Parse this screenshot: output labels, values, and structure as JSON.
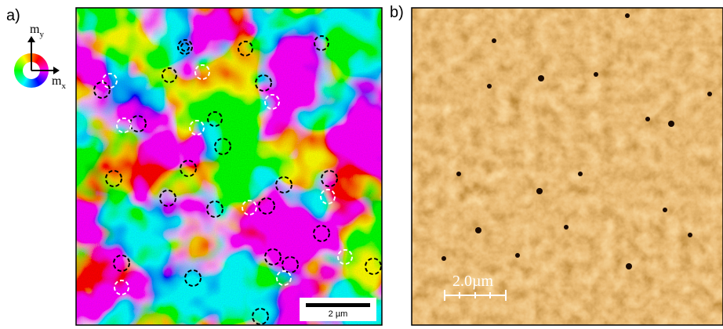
{
  "panels": [
    {
      "label": "a)",
      "scale_bar": "2 µm",
      "color_wheel": {
        "y_axis": "m",
        "y_sub": "y",
        "x_axis": "m",
        "x_sub": "x"
      }
    },
    {
      "label": "b)",
      "scale_bar": "2.0µm"
    }
  ]
}
